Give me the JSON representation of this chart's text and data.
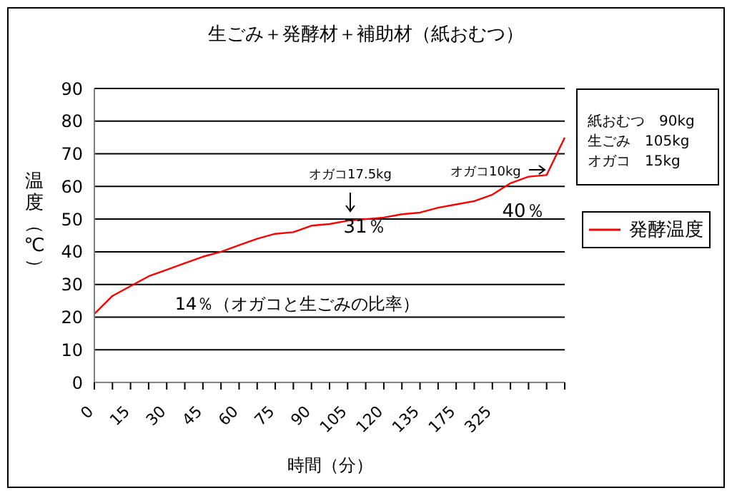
{
  "chart_data": {
    "type": "line",
    "title": "生ごみ＋発酵材＋補助材（紙おむつ）",
    "xlabel": "時間（分）",
    "ylabel": "温度（℃）",
    "categories": [
      "0",
      null,
      "15",
      null,
      "30",
      null,
      "45",
      null,
      "60",
      null,
      "75",
      null,
      "90",
      null,
      "105",
      null,
      "120",
      null,
      "135",
      null,
      "175",
      null,
      "325",
      null,
      null,
      null,
      null
    ],
    "series": [
      {
        "name": "発酵温度",
        "color": "#ff0000",
        "values": [
          21,
          26.5,
          29.5,
          32.5,
          34.5,
          36.5,
          38.5,
          40,
          42,
          44,
          45.5,
          46,
          48,
          48.5,
          49.5,
          50,
          50.5,
          51.5,
          52,
          53.5,
          54.5,
          55.5,
          57.5,
          61,
          63,
          63.5,
          75
        ]
      }
    ],
    "ylim": [
      0,
      90
    ],
    "yticks": [
      0,
      10,
      20,
      30,
      40,
      50,
      60,
      70,
      80,
      90
    ],
    "grid": "y",
    "legend": "right",
    "marker": "none",
    "line_style": "solid",
    "annotations": [
      "オガコ17.5kg",
      "31％",
      "オガコ10kg",
      "40％",
      "14％（オガコと生ごみの比率）",
      "紙おむつ　90kg",
      "生ごみ　105kg",
      "オガコ　15kg"
    ]
  }
}
